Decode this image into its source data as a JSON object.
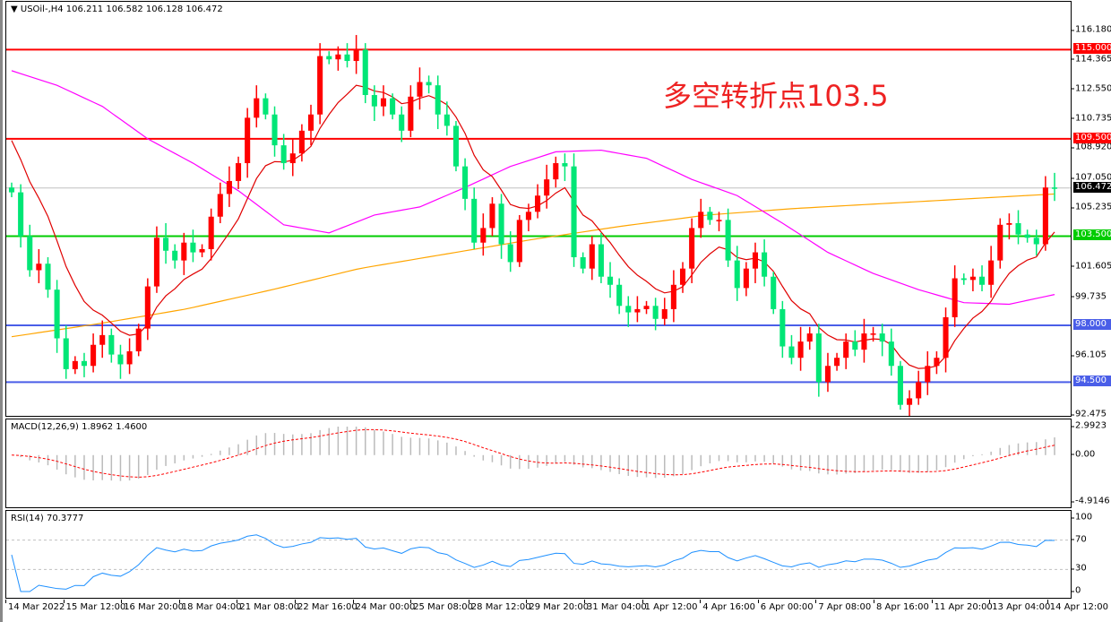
{
  "header": {
    "symbol_label": "▼ USOil-,H4  106.211 106.582 106.128 106.472"
  },
  "annotation": "多空转折点103.5",
  "colors": {
    "bull": "#ff0000",
    "bear": "#00e676",
    "ma_fast": "#e00000",
    "ma_mid": "#ff00ff",
    "ma_slow": "#ffa500",
    "rsi": "#1e90ff",
    "macd_hist": "#bbbbbb",
    "macd_signal": "#ff0000"
  },
  "price_axis": {
    "range": [
      92.475,
      116.18
    ],
    "ticks": [
      "116.180",
      "114.365",
      "112.550",
      "110.735",
      "108.920",
      "107.050",
      "105.235",
      "101.605",
      "99.735",
      "96.105",
      "92.475"
    ]
  },
  "levels": [
    {
      "value": 115.0,
      "label": "115.000",
      "color": "#ff0000"
    },
    {
      "value": 109.5,
      "label": "109.500",
      "color": "#ff0000"
    },
    {
      "value": 103.5,
      "label": "103.500",
      "color": "#00cc00"
    },
    {
      "value": 98.0,
      "label": "98.000",
      "color": "#4a5ee8"
    },
    {
      "value": 94.5,
      "label": "94.500",
      "color": "#4a5ee8"
    }
  ],
  "current_price": {
    "value": 106.472,
    "label": "106.472"
  },
  "macd": {
    "label": "MACD(12,26,9) 1.8962 1.4600",
    "ticks": [
      "2.9923",
      "0.00",
      "-4.9146"
    ],
    "range": [
      -4.9146,
      2.9923
    ]
  },
  "rsi": {
    "label": "RSI(14) 70.3777",
    "ticks": [
      "100",
      "70",
      "30",
      "0"
    ],
    "levels": [
      70,
      30
    ]
  },
  "time_axis": [
    "14 Mar 2022",
    "15 Mar 12:00",
    "16 Mar 20:00",
    "18 Mar 04:00",
    "21 Mar 08:00",
    "22 Mar 16:00",
    "24 Mar 00:00",
    "25 Mar 08:00",
    "28 Mar 12:00",
    "29 Mar 20:00",
    "31 Mar 04:00",
    "1 Apr 12:00",
    "4 Apr 16:00",
    "6 Apr 00:00",
    "7 Apr 08:00",
    "8 Apr 16:00",
    "11 Apr 20:00",
    "13 Apr 04:00",
    "14 Apr 12:00"
  ],
  "chart_data": {
    "type": "candlestick",
    "closes": [
      106.2,
      103.5,
      101.4,
      101.8,
      100.2,
      97.2,
      95.3,
      95.8,
      95.5,
      96.8,
      97.4,
      96.2,
      95.6,
      96.4,
      97.8,
      100.4,
      103.4,
      102.6,
      102.0,
      103.1,
      102.5,
      102.7,
      104.7,
      106.1,
      106.9,
      108.0,
      110.8,
      112.0,
      111.0,
      109.1,
      108.0,
      108.6,
      110.0,
      111.0,
      114.6,
      114.4,
      114.7,
      114.3,
      115.0,
      112.2,
      111.5,
      112.0,
      111.0,
      110.0,
      112.1,
      113.0,
      112.8,
      111.0,
      110.3,
      107.8,
      105.8,
      103.1,
      104.0,
      105.5,
      103.0,
      101.9,
      104.5,
      105.0,
      106.0,
      107.0,
      108.0,
      107.8,
      102.2,
      101.5,
      103.0,
      101.0,
      100.5,
      99.2,
      98.8,
      99.0,
      99.2,
      98.4,
      99.0,
      100.5,
      101.5,
      104.0,
      105.0,
      104.5,
      104.5,
      102.0,
      100.3,
      101.5,
      102.5,
      101.0,
      99.0,
      96.7,
      96.0,
      97.0,
      97.5,
      94.5,
      95.5,
      96.0,
      97.0,
      96.5,
      97.5,
      97.5,
      97.0,
      95.5,
      93.1,
      93.5,
      94.5,
      95.5,
      96.0,
      98.5,
      100.9,
      100.8,
      101.0,
      100.5,
      102.0,
      104.2,
      104.3,
      103.6,
      103.4,
      103.0,
      106.5,
      106.47
    ],
    "ma_mid": [
      113.7,
      112.8,
      111.5,
      109.5,
      108,
      106.3,
      104.2,
      103.7,
      104.8,
      105.3,
      106.5,
      107.8,
      108.7,
      108.8,
      108.3,
      107,
      106,
      104.3,
      102.5,
      101.2,
      100.2,
      99.4,
      99.3,
      99.9
    ],
    "ma_slow": [
      97.3,
      98.1,
      99,
      100.2,
      101.5,
      102.4,
      103.3,
      104.1,
      104.8,
      105.2,
      105.5,
      105.8,
      106.1
    ]
  }
}
